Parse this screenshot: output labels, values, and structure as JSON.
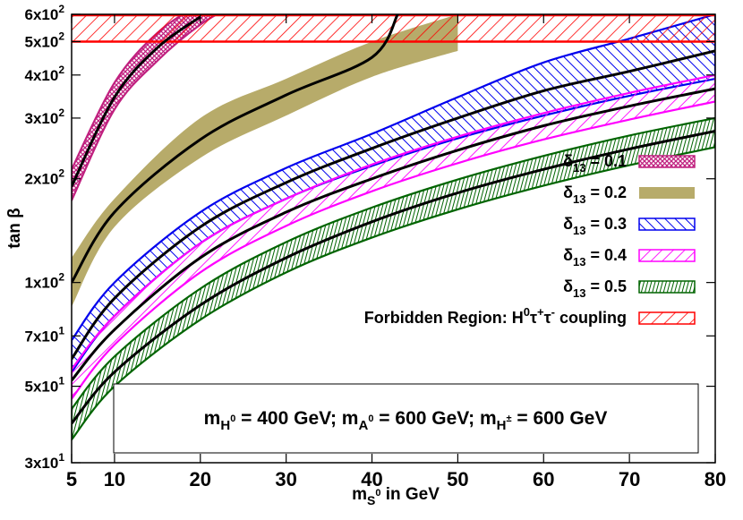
{
  "chart_data": {
    "type": "area",
    "xlabel": "m_S^0 in GeV",
    "ylabel": "tan β",
    "xlim": [
      5,
      80
    ],
    "ylim": [
      30,
      600
    ],
    "y_scale": "log",
    "x_ticks": [
      "5",
      "10",
      "20",
      "30",
      "40",
      "50",
      "60",
      "70",
      "80"
    ],
    "y_ticks": [
      {
        "value": 30,
        "label": "3x10^1"
      },
      {
        "value": 50,
        "label": "5x10^1"
      },
      {
        "value": 70,
        "label": "7x10^1"
      },
      {
        "value": 100,
        "label": "1x10^2"
      },
      {
        "value": 200,
        "label": "2x10^2"
      },
      {
        "value": 300,
        "label": "3x10^2"
      },
      {
        "value": 400,
        "label": "4x10^2"
      },
      {
        "value": 500,
        "label": "5x10^2"
      },
      {
        "value": 600,
        "label": "6x10^2"
      }
    ],
    "grid": false,
    "legend_position": "right",
    "series": [
      {
        "name": "δ13 = 0.1",
        "color": "#c0207f",
        "fill": "crosshatch",
        "x": [
          5,
          10,
          15,
          20,
          24
        ],
        "lower": [
          173,
          318,
          440,
          560,
          640
        ],
        "upper": [
          213,
          380,
          530,
          640,
          700
        ]
      },
      {
        "name": "δ13 = 0.2",
        "color": "#b7ab6a",
        "fill": "solid",
        "x": [
          5,
          10,
          20,
          30,
          40,
          50
        ],
        "lower": [
          85,
          145,
          230,
          305,
          395,
          470
        ],
        "upper": [
          118,
          175,
          300,
          390,
          500,
          600
        ]
      },
      {
        "name": "δ13 = 0.3",
        "color": "#0000ee",
        "fill": "hatch-backslash",
        "x": [
          5,
          10,
          20,
          30,
          40,
          50,
          60,
          70,
          80
        ],
        "lower": [
          55,
          80,
          130,
          175,
          218,
          262,
          305,
          348,
          390
        ],
        "upper": [
          68,
          100,
          160,
          215,
          270,
          345,
          435,
          510,
          600
        ]
      },
      {
        "name": "δ13 = 0.4",
        "color": "#ff00ff",
        "fill": "hatch-slash",
        "x": [
          5,
          10,
          20,
          30,
          40,
          50,
          60,
          70,
          80
        ],
        "lower": [
          46,
          66,
          107,
          146,
          184,
          222,
          260,
          297,
          335
        ],
        "upper": [
          56,
          80,
          130,
          175,
          220,
          265,
          310,
          355,
          400
        ]
      },
      {
        "name": "δ13 = 0.5",
        "color": "#006400",
        "fill": "hatch-vertical",
        "x": [
          5,
          10,
          20,
          30,
          40,
          50,
          60,
          70,
          80
        ],
        "lower": [
          35,
          50,
          78,
          107,
          135,
          163,
          191,
          219,
          247
        ],
        "upper": [
          43,
          61,
          96,
          131,
          165,
          199,
          233,
          267,
          300
        ]
      }
    ],
    "central_lines": [
      {
        "x": [
          5,
          10,
          15,
          20
        ],
        "y": [
          190,
          345,
          480,
          590
        ]
      },
      {
        "x": [
          5,
          10,
          20,
          30,
          40,
          43
        ],
        "y": [
          100,
          160,
          260,
          350,
          450,
          600
        ]
      },
      {
        "x": [
          5,
          10,
          20,
          30,
          40,
          50,
          60,
          70,
          80
        ],
        "y": [
          60,
          90,
          145,
          195,
          245,
          300,
          360,
          410,
          470
        ]
      },
      {
        "x": [
          5,
          10,
          20,
          30,
          40,
          50,
          60,
          70,
          80
        ],
        "y": [
          52,
          73,
          118,
          160,
          200,
          242,
          285,
          325,
          365
        ]
      },
      {
        "x": [
          5,
          10,
          20,
          30,
          40,
          50,
          60,
          70,
          80
        ],
        "y": [
          39,
          55,
          86,
          118,
          150,
          182,
          213,
          244,
          275
        ]
      }
    ],
    "forbidden_region": {
      "name": "Forbidden Region: H^0τ^+τ^- coupling",
      "color": "#ff0000",
      "fill": "hatch-slash",
      "y_range": [
        500,
        600
      ]
    },
    "annotation": "m_H^0 = 400 GeV; m_A^0 = 600 GeV; m_H^± = 600 GeV"
  }
}
